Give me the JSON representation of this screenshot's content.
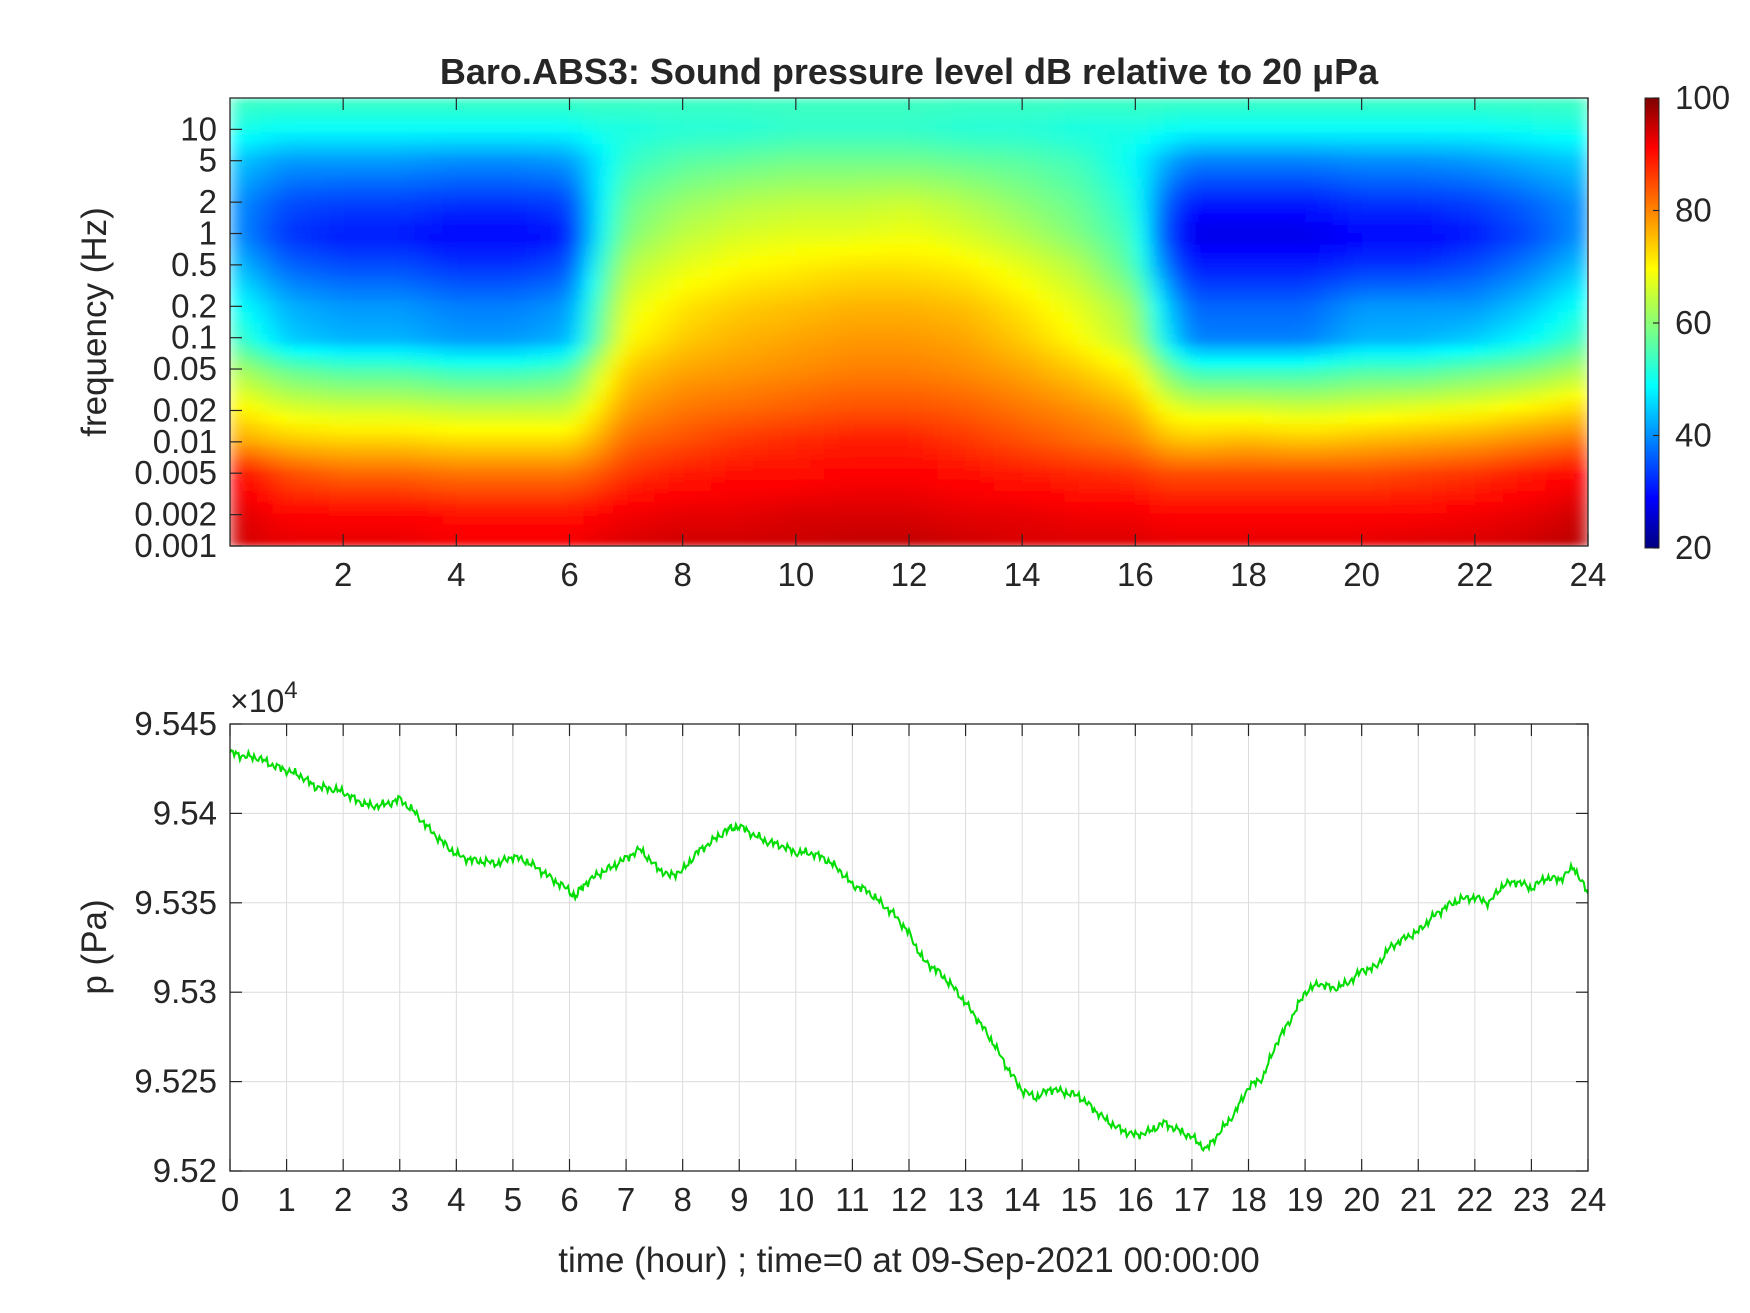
{
  "chart_data": [
    {
      "type": "heatmap",
      "title": "Baro.ABS3: Sound pressure level dB relative to 20 μPa",
      "xlabel": "",
      "ylabel": "frequency (Hz)",
      "xlim": [
        0,
        24
      ],
      "x_ticks": [
        2,
        4,
        6,
        8,
        10,
        12,
        14,
        16,
        18,
        20,
        22,
        24
      ],
      "x_tick_labels": [
        "2",
        "4",
        "6",
        "8",
        "10",
        "12",
        "14",
        "16",
        "18",
        "20",
        "22",
        "24"
      ],
      "y_scale": "log",
      "ylim": [
        0.001,
        20
      ],
      "y_ticks": [
        0.001,
        0.002,
        0.005,
        0.01,
        0.02,
        0.05,
        0.1,
        0.2,
        0.5,
        1,
        2,
        5,
        10
      ],
      "y_tick_labels": [
        "0.001",
        "0.002",
        "0.005",
        "0.01",
        "0.02",
        "0.05",
        "0.1",
        "0.2",
        "0.5",
        "1",
        "2",
        "5",
        "10"
      ],
      "colormap": "jet",
      "colorbar": {
        "range": [
          20,
          100
        ],
        "ticks": [
          20,
          40,
          60,
          80,
          100
        ],
        "tick_labels": [
          "20",
          "40",
          "60",
          "80",
          "100"
        ]
      },
      "grid": false,
      "time_hours": [
        0,
        1,
        2,
        3,
        4,
        5,
        6,
        6.5,
        7,
        8,
        9,
        10,
        11,
        12,
        13,
        14,
        15,
        16,
        16.5,
        17,
        18,
        19,
        20,
        21,
        22,
        23,
        24
      ],
      "frequency_hz": [
        0.001,
        0.002,
        0.005,
        0.01,
        0.02,
        0.05,
        0.1,
        0.2,
        0.5,
        1,
        2,
        5,
        10,
        20
      ],
      "level_db": [
        [
          94,
          93,
          90,
          78,
          72,
          64,
          56,
          52,
          46,
          42,
          42,
          46,
          52,
          55
        ],
        [
          92,
          90,
          84,
          75,
          68,
          58,
          46,
          44,
          38,
          34,
          36,
          42,
          50,
          55
        ],
        [
          92,
          90,
          82,
          74,
          67,
          56,
          44,
          42,
          36,
          32,
          35,
          42,
          50,
          55
        ],
        [
          92,
          90,
          82,
          74,
          67,
          56,
          44,
          42,
          36,
          32,
          35,
          42,
          50,
          55
        ],
        [
          91,
          89,
          81,
          73,
          66,
          54,
          42,
          40,
          34,
          30,
          34,
          41,
          50,
          55
        ],
        [
          91,
          89,
          81,
          73,
          66,
          54,
          42,
          40,
          34,
          30,
          34,
          41,
          50,
          55
        ],
        [
          91,
          89,
          81,
          73,
          66,
          56,
          44,
          42,
          36,
          32,
          35,
          42,
          50,
          55
        ],
        [
          92,
          90,
          83,
          77,
          72,
          66,
          58,
          56,
          52,
          49,
          48,
          48,
          52,
          55
        ],
        [
          93,
          91,
          86,
          82,
          78,
          74,
          70,
          68,
          64,
          60,
          58,
          54,
          52,
          55
        ],
        [
          94,
          92,
          88,
          84,
          81,
          77,
          74,
          72,
          68,
          65,
          62,
          57,
          53,
          55
        ],
        [
          94,
          92,
          89,
          86,
          82,
          78,
          76,
          74,
          70,
          67,
          64,
          58,
          53,
          55
        ],
        [
          94,
          93,
          89,
          87,
          83,
          79,
          77,
          75,
          71,
          68,
          65,
          59,
          54,
          55
        ],
        [
          95,
          93,
          90,
          88,
          84,
          80,
          78,
          76,
          72,
          68,
          65,
          59,
          54,
          55
        ],
        [
          95,
          93,
          90,
          88,
          84,
          80,
          78,
          76,
          72,
          69,
          66,
          59,
          54,
          55
        ],
        [
          94,
          92,
          89,
          86,
          83,
          79,
          77,
          75,
          71,
          67,
          64,
          58,
          53,
          55
        ],
        [
          93,
          92,
          88,
          84,
          81,
          77,
          74,
          72,
          68,
          64,
          61,
          57,
          53,
          55
        ],
        [
          93,
          91,
          87,
          82,
          79,
          74,
          70,
          68,
          64,
          60,
          58,
          55,
          52,
          55
        ],
        [
          93,
          91,
          86,
          80,
          76,
          70,
          64,
          62,
          56,
          54,
          52,
          50,
          52,
          55
        ],
        [
          92,
          90,
          84,
          76,
          70,
          60,
          50,
          47,
          40,
          36,
          38,
          44,
          51,
          55
        ],
        [
          92,
          90,
          84,
          75,
          68,
          54,
          40,
          38,
          32,
          28,
          32,
          40,
          50,
          55
        ],
        [
          92,
          90,
          84,
          76,
          68,
          54,
          40,
          38,
          32,
          28,
          32,
          40,
          50,
          55
        ],
        [
          92,
          90,
          84,
          75,
          67,
          54,
          40,
          38,
          32,
          28,
          32,
          40,
          50,
          55
        ],
        [
          92,
          90,
          84,
          76,
          68,
          56,
          44,
          42,
          34,
          30,
          34,
          41,
          50,
          55
        ],
        [
          93,
          90,
          85,
          77,
          69,
          56,
          44,
          42,
          34,
          30,
          34,
          41,
          50,
          55
        ],
        [
          93,
          91,
          86,
          78,
          70,
          58,
          46,
          42,
          36,
          32,
          35,
          42,
          50,
          55
        ],
        [
          94,
          92,
          88,
          80,
          72,
          60,
          50,
          46,
          40,
          36,
          38,
          44,
          51,
          55
        ],
        [
          96,
          94,
          90,
          82,
          74,
          64,
          56,
          52,
          46,
          42,
          42,
          46,
          52,
          55
        ]
      ]
    },
    {
      "type": "line",
      "title": "",
      "xlabel": "time (hour) ; time=0 at 09-Sep-2021 00:00:00",
      "ylabel": "p (Pa)",
      "xlim": [
        0,
        24
      ],
      "ylim": [
        95200,
        95450
      ],
      "x_ticks": [
        0,
        1,
        2,
        3,
        4,
        5,
        6,
        7,
        8,
        9,
        10,
        11,
        12,
        13,
        14,
        15,
        16,
        17,
        18,
        19,
        20,
        21,
        22,
        23,
        24
      ],
      "x_tick_labels": [
        "0",
        "1",
        "2",
        "3",
        "4",
        "5",
        "6",
        "7",
        "8",
        "9",
        "10",
        "11",
        "12",
        "13",
        "14",
        "15",
        "16",
        "17",
        "18",
        "19",
        "20",
        "21",
        "22",
        "23",
        "24"
      ],
      "y_ticks": [
        95200,
        95250,
        95300,
        95350,
        95400,
        95450
      ],
      "y_tick_labels": [
        "9.52",
        "9.525",
        "9.53",
        "9.535",
        "9.54",
        "9.545"
      ],
      "y_exponent_label": "×10",
      "y_exponent_power": "4",
      "grid": true,
      "series": [
        {
          "color": "#00dd00",
          "x": [
            0,
            0.25,
            0.5,
            0.75,
            1,
            1.25,
            1.5,
            1.75,
            2,
            2.25,
            2.5,
            2.75,
            3,
            3.25,
            3.5,
            3.75,
            4,
            4.25,
            4.5,
            4.75,
            5,
            5.25,
            5.5,
            5.75,
            6,
            6.1,
            6.25,
            6.5,
            6.75,
            7,
            7.25,
            7.5,
            7.75,
            8,
            8.25,
            8.5,
            8.75,
            8.9,
            9,
            9.25,
            9.5,
            9.75,
            10,
            10.25,
            10.5,
            10.75,
            11,
            11.25,
            11.5,
            11.75,
            12,
            12.25,
            12.5,
            12.75,
            13,
            13.25,
            13.5,
            13.75,
            14,
            14.25,
            14.5,
            14.75,
            15,
            15.25,
            15.5,
            15.75,
            16,
            16.25,
            16.5,
            16.75,
            17,
            17.25,
            17.5,
            17.75,
            18,
            18.25,
            18.5,
            18.75,
            19,
            19.25,
            19.5,
            19.75,
            20,
            20.25,
            20.5,
            20.75,
            21,
            21.25,
            21.5,
            21.75,
            22,
            22.25,
            22.5,
            22.75,
            23,
            23.25,
            23.5,
            23.75,
            24
          ],
          "y": [
            95434,
            95432,
            95431,
            95427,
            95424,
            95421,
            95415,
            95414,
            95412,
            95407,
            95404,
            95405,
            95408,
            95401,
            95392,
            95384,
            95377,
            95374,
            95373,
            95372,
            95376,
            95373,
            95368,
            95362,
            95357,
            95353,
            95360,
            95366,
            95370,
            95375,
            95380,
            95371,
            95365,
            95368,
            95378,
            95384,
            95390,
            95392,
            95393,
            95388,
            95384,
            95382,
            95378,
            95378,
            95375,
            95369,
            95360,
            95357,
            95350,
            95343,
            95333,
            95318,
            95312,
            95304,
            95294,
            95283,
            95271,
            95257,
            95245,
            95241,
            95246,
            95244,
            95242,
            95235,
            95228,
            95223,
            95220,
            95222,
            95227,
            95223,
            95219,
            95212,
            95222,
            95232,
            95247,
            95252,
            95272,
            95285,
            95300,
            95305,
            95302,
            95305,
            95312,
            95314,
            95325,
            95330,
            95334,
            95342,
            95348,
            95352,
            95353,
            95350,
            95360,
            95362,
            95358,
            95364,
            95363,
            95370,
            95355
          ]
        }
      ]
    }
  ]
}
